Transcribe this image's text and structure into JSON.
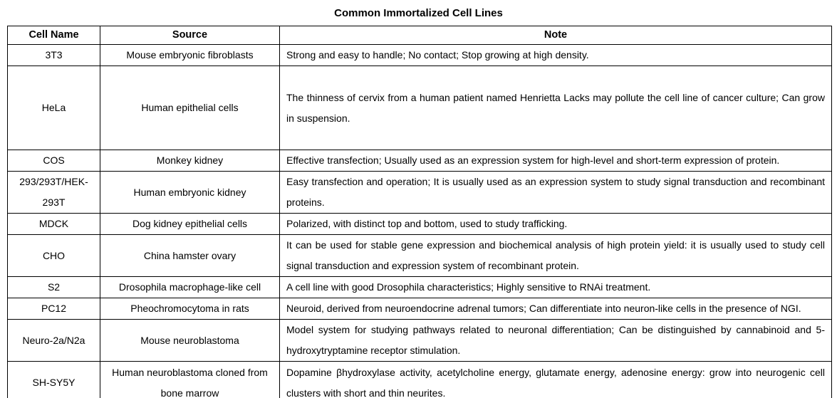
{
  "title": "Common Immortalized Cell Lines",
  "colors": {
    "text": "#000000",
    "border": "#000000",
    "background": "#ffffff"
  },
  "table": {
    "headers": [
      "Cell Name",
      "Source",
      "Note"
    ],
    "rows": [
      {
        "cell_name": "3T3",
        "source": "Mouse embryonic fibroblasts",
        "note": "Strong and easy to handle; No contact; Stop growing at high density."
      },
      {
        "cell_name": "HeLa",
        "source": "Human epithelial cells",
        "note": "The thinness of cervix from a human patient named Henrietta Lacks may pollute the cell line of cancer culture; Can grow in suspension."
      },
      {
        "cell_name": "COS",
        "source": "Monkey kidney",
        "note": "Effective transfection; Usually used as an expression system for high-level and short-term expression of protein."
      },
      {
        "cell_name": "293/293T/HEK-293T",
        "source": "Human embryonic kidney",
        "note": "Easy transfection and operation; It is usually used as an expression system to study signal transduction and recombinant proteins."
      },
      {
        "cell_name": "MDCK",
        "source": "Dog kidney epithelial cells",
        "note": "Polarized, with distinct top and bottom, used to study trafficking."
      },
      {
        "cell_name": "CHO",
        "source": "China hamster ovary",
        "note": "It can be used for stable gene expression and biochemical analysis of high protein yield: it is usually used to study cell signal transduction and expression system of recombinant protein."
      },
      {
        "cell_name": "S2",
        "source": "Drosophila macrophage-like cell",
        "note": "A cell line with good Drosophila characteristics; Highly sensitive to RNAi treatment."
      },
      {
        "cell_name": "PC12",
        "source": "Pheochromocytoma in rats",
        "note": "Neuroid, derived from neuroendocrine adrenal tumors; Can differentiate into neuron-like cells in the presence of NGI."
      },
      {
        "cell_name": "Neuro-2a/N2a",
        "source": "Mouse neuroblastoma",
        "note": "Model system for studying pathways related to neuronal differentiation; Can be distinguished by cannabinoid and 5-hydroxytryptamine receptor stimulation."
      },
      {
        "cell_name": "SH-SY5Y",
        "source": "Human neuroblastoma cloned from bone marrow",
        "note": "Dopamine βhydroxylase activity, acetylcholine energy, glutamate energy, adenosine energy: grow into neurogenic cell clusters with short and thin neurites."
      }
    ]
  }
}
